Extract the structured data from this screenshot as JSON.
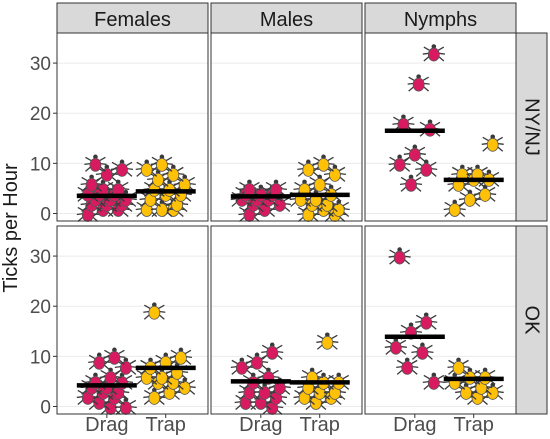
{
  "chart_data": {
    "type": "scatter",
    "ylabel": "Ticks per Hour",
    "xlabel": "",
    "categories": [
      "Drag",
      "Trap"
    ],
    "yticks": [
      0,
      10,
      20,
      30
    ],
    "ylim": [
      -1.5,
      36
    ],
    "grid": true,
    "colors": {
      "Drag": "#d81b60",
      "Trap": "#ffc107"
    },
    "stage_labels": [
      "Females",
      "Males",
      "Nymphs"
    ],
    "region_labels": [
      "NY/NJ",
      "OK"
    ],
    "panels": [
      {
        "stage": "Females",
        "region": "NY/NJ",
        "drag_mean": 3.5,
        "trap_mean": 4.4,
        "drag": [
          0,
          1,
          1,
          2,
          2,
          2,
          3,
          3,
          3,
          4,
          4,
          4,
          5,
          5,
          6,
          8,
          9,
          10
        ],
        "trap": [
          1,
          1,
          1,
          2,
          3,
          4,
          4,
          5,
          5,
          6,
          7,
          8,
          9,
          10
        ]
      },
      {
        "stage": "Males",
        "region": "NY/NJ",
        "drag_mean": 3.4,
        "trap_mean": 3.7,
        "drag": [
          0,
          1,
          2,
          2,
          3,
          3,
          3,
          4,
          4,
          4,
          5,
          5
        ],
        "trap": [
          0,
          0,
          1,
          1,
          2,
          2,
          3,
          3,
          4,
          5,
          6,
          8,
          9,
          10
        ]
      },
      {
        "stage": "Nymphs",
        "region": "NY/NJ",
        "drag_mean": 16.5,
        "trap_mean": 6.7,
        "drag": [
          6,
          9,
          10,
          12,
          17,
          18,
          26,
          32
        ],
        "trap": [
          1,
          3,
          4,
          6,
          7,
          7,
          8,
          8,
          14
        ]
      },
      {
        "stage": "Females",
        "region": "OK",
        "drag_mean": 4.2,
        "trap_mean": 7.7,
        "drag": [
          0,
          0,
          1,
          2,
          2,
          3,
          3,
          4,
          4,
          5,
          5,
          6,
          8,
          9,
          10
        ],
        "trap": [
          2,
          3,
          4,
          5,
          5,
          6,
          6,
          7,
          8,
          9,
          10,
          19
        ]
      },
      {
        "stage": "Males",
        "region": "OK",
        "drag_mean": 5.0,
        "trap_mean": 4.8,
        "drag": [
          0,
          1,
          1,
          2,
          3,
          3,
          4,
          5,
          6,
          8,
          9,
          11
        ],
        "trap": [
          1,
          2,
          2,
          3,
          3,
          4,
          5,
          5,
          6,
          13
        ]
      },
      {
        "stage": "Nymphs",
        "region": "OK",
        "drag_mean": 13.9,
        "trap_mean": 5.5,
        "drag": [
          5,
          8,
          11,
          12,
          15,
          17,
          30
        ],
        "trap": [
          2,
          3,
          3,
          4,
          5,
          6,
          6,
          8
        ]
      }
    ]
  }
}
